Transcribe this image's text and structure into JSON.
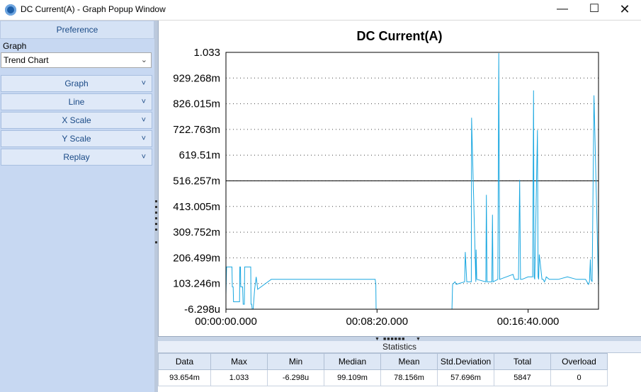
{
  "window": {
    "title": "DC Current(A) - Graph Popup Window",
    "controls": [
      "minimize-icon",
      "maximize-icon",
      "close-icon"
    ]
  },
  "sidebar": {
    "header": "Preference",
    "graph_label": "Graph",
    "graph_type_selected": "Trend Chart",
    "sections": [
      "Graph",
      "Line",
      "X Scale",
      "Y Scale",
      "Replay"
    ]
  },
  "chart_data": {
    "type": "line",
    "title": "DC Current(A)",
    "y_ticks": [
      "1.033",
      "929.268m",
      "826.015m",
      "722.763m",
      "619.51m",
      "516.257m",
      "413.005m",
      "309.752m",
      "206.499m",
      "103.246m",
      "-6.298u"
    ],
    "ylim": [
      -6.298e-06,
      1.033
    ],
    "x_ticks": [
      "00:00:00.000",
      "00:08:20.000",
      "00:16:40.000"
    ],
    "x_tick_seconds": [
      0,
      500,
      1000
    ],
    "xlim_seconds": [
      0,
      1233
    ],
    "reference_line": 0.516257,
    "grid": "dotted horizontal",
    "series": [
      {
        "color": "#1aa7e0",
        "x": [
          0,
          2,
          3,
          20,
          21,
          24,
          25,
          45,
          46,
          48,
          49,
          55,
          57,
          61,
          62,
          82,
          83,
          85,
          87,
          90,
          95,
          100,
          105,
          150,
          200,
          250,
          300,
          350,
          400,
          440,
          494,
          496,
          497,
          748,
          750,
          758,
          762,
          790,
          792,
          797,
          812,
          813,
          827,
          828,
          830,
          860,
          862,
          864,
          880,
          882,
          884,
          900,
          903,
          906,
          950,
          955,
          968,
          972,
          975,
          980,
          1000,
          1015,
          1018,
          1020,
          1022,
          1031,
          1033,
          1035,
          1037,
          1046,
          1050,
          1054,
          1058,
          1060,
          1070,
          1100,
          1130,
          1160,
          1190,
          1200,
          1203,
          1206,
          1208,
          1212,
          1218,
          1233
        ],
        "y": [
          0.06,
          0.17,
          0.17,
          0.17,
          0.09,
          0.09,
          0.03,
          0.03,
          0.17,
          0.17,
          0.09,
          0.09,
          0.02,
          0.02,
          0.17,
          0.17,
          0.02,
          0.02,
          0.0,
          0.0,
          0.08,
          0.13,
          0.08,
          0.12,
          0.12,
          0.12,
          0.12,
          0.12,
          0.12,
          0.12,
          0.12,
          0.1,
          0.0,
          0.0,
          0.1,
          0.11,
          0.1,
          0.11,
          0.23,
          0.11,
          0.11,
          0.77,
          0.11,
          0.24,
          0.12,
          0.11,
          0.46,
          0.11,
          0.11,
          0.38,
          0.11,
          0.12,
          1.03,
          0.12,
          0.14,
          0.12,
          0.12,
          0.52,
          0.12,
          0.12,
          0.13,
          0.13,
          0.88,
          0.13,
          0.12,
          0.72,
          0.13,
          0.12,
          0.22,
          0.12,
          0.12,
          0.11,
          0.12,
          0.13,
          0.12,
          0.12,
          0.13,
          0.12,
          0.12,
          0.1,
          0.11,
          0.2,
          0.12,
          0.11,
          0.86,
          0.09
        ]
      }
    ]
  },
  "statistics": {
    "title": "Statistics",
    "headers": [
      "Data",
      "Max",
      "Min",
      "Median",
      "Mean",
      "Std.Deviation",
      "Total",
      "Overload"
    ],
    "values": [
      "93.654m",
      "1.033",
      "-6.298u",
      "99.109m",
      "78.156m",
      "57.696m",
      "5847",
      "0"
    ]
  },
  "colors": {
    "series": "#1aa7e0",
    "sidebar_bg": "#c7d8f2",
    "section_text": "#1a4a86"
  }
}
